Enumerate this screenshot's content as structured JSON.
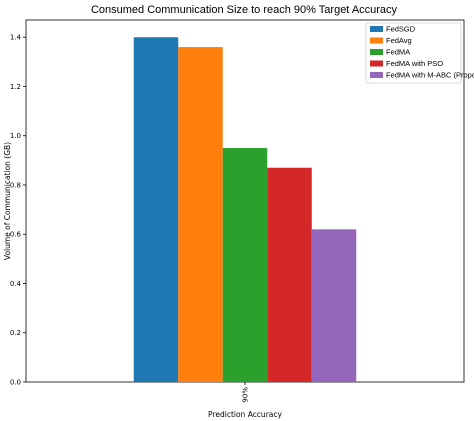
{
  "chart_data": {
    "type": "bar",
    "title": "Consumed Communication Size to reach 90% Target Accuracy",
    "xlabel": "Prediction Accuracy",
    "ylabel": "Volume of Communication (GB)",
    "categories": [
      "90%"
    ],
    "series": [
      {
        "name": "FedSGD",
        "values": [
          1.4
        ],
        "color": "#1f77b4"
      },
      {
        "name": "FedAvg",
        "values": [
          1.36
        ],
        "color": "#ff7f0e"
      },
      {
        "name": "FedMA",
        "values": [
          0.95
        ],
        "color": "#2ca02c"
      },
      {
        "name": "FedMA with PSO",
        "values": [
          0.87
        ],
        "color": "#d62728"
      },
      {
        "name": "FedMA with M-ABC (Proposed)",
        "values": [
          0.62
        ],
        "color": "#9467bd"
      }
    ],
    "ylim": [
      0,
      1.47
    ],
    "yticks": [
      "0.0",
      "0.2",
      "0.4",
      "0.6",
      "0.8",
      "1.0",
      "1.2",
      "1.4"
    ],
    "legend_position": "top-right",
    "grid": false
  }
}
